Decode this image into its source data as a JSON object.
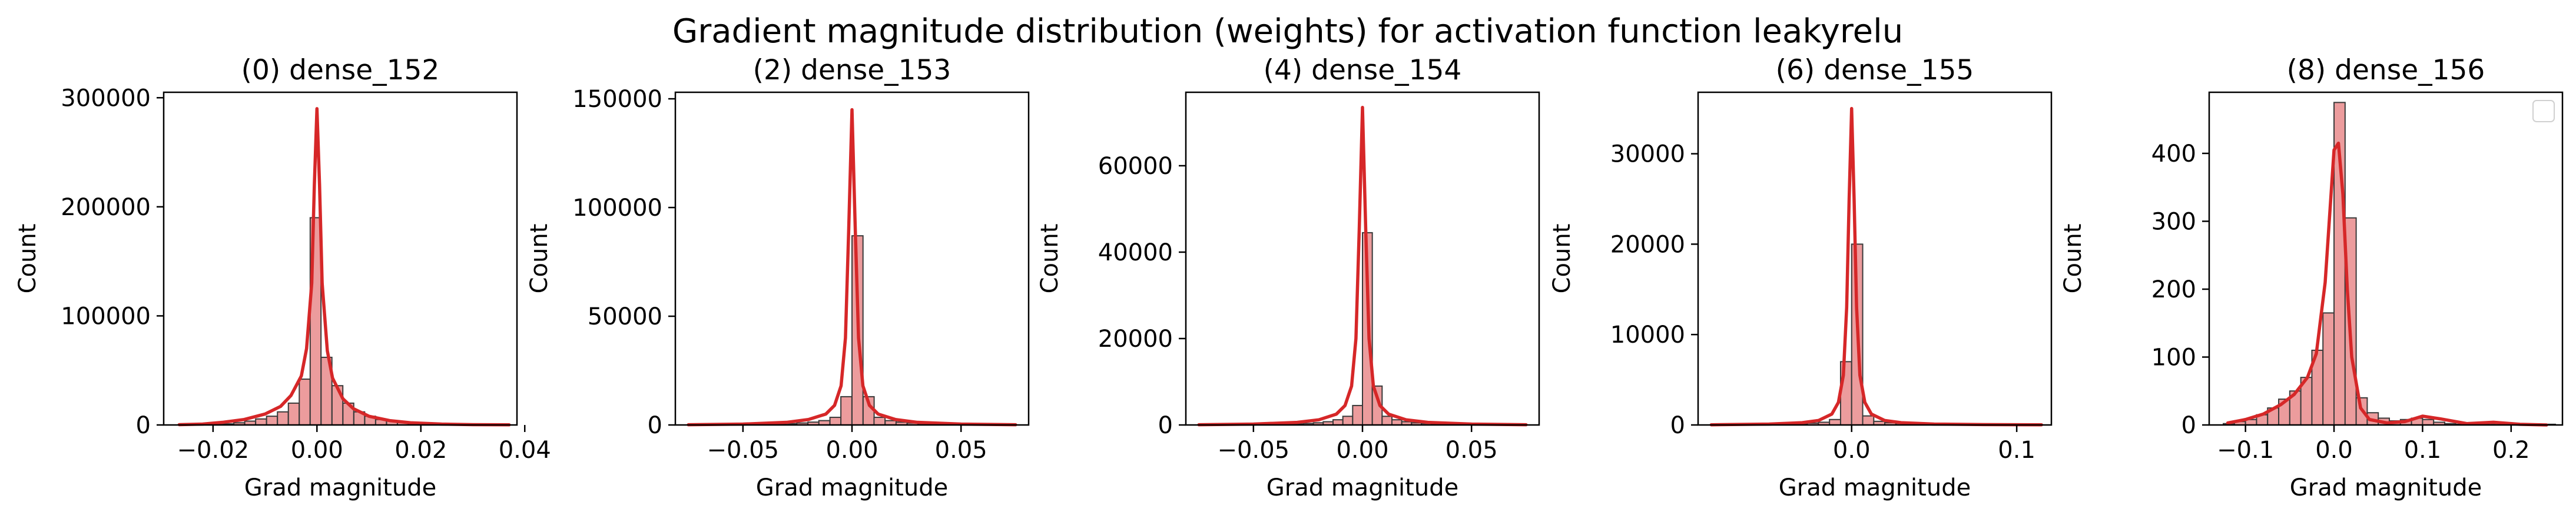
{
  "figure": {
    "title": "Gradient magnitude distribution (weights) for activation function leakyrelu",
    "colors": {
      "bar_fill": "#ec9c9d",
      "bar_edge": "#3a3a3a",
      "kde_line": "#d62728",
      "axes": "#000000"
    }
  },
  "chart_data": [
    {
      "type": "bar",
      "title": "(0) dense_152",
      "xlabel": "Grad magnitude",
      "ylabel": "Count",
      "xlim": [
        -0.0295,
        0.0385
      ],
      "ylim": [
        0,
        305000
      ],
      "xticks": [
        -0.02,
        0.0,
        0.02,
        0.04
      ],
      "xtick_labels": [
        "−0.02",
        "0.00",
        "0.02",
        "0.04"
      ],
      "yticks": [
        0,
        100000,
        200000,
        300000
      ],
      "ytick_labels": [
        "0",
        "100000",
        "200000",
        "300000"
      ],
      "bin_width": 0.00208,
      "bins": [
        [
          -0.0265,
          60
        ],
        [
          -0.0244,
          110
        ],
        [
          -0.0223,
          200
        ],
        [
          -0.0202,
          450
        ],
        [
          -0.0181,
          1000
        ],
        [
          -0.016,
          2000
        ],
        [
          -0.0139,
          3500
        ],
        [
          -0.0118,
          5500
        ],
        [
          -0.0097,
          8000
        ],
        [
          -0.0076,
          12000
        ],
        [
          -0.0055,
          20000
        ],
        [
          -0.0034,
          42000
        ],
        [
          -0.0013,
          190000
        ],
        [
          0.0008,
          62000
        ],
        [
          0.0029,
          36000
        ],
        [
          0.005,
          20000
        ],
        [
          0.0071,
          12000
        ],
        [
          0.0092,
          8000
        ],
        [
          0.0113,
          5000
        ],
        [
          0.0134,
          3500
        ],
        [
          0.0155,
          2200
        ],
        [
          0.0176,
          1400
        ],
        [
          0.0197,
          900
        ],
        [
          0.0218,
          600
        ],
        [
          0.0239,
          400
        ],
        [
          0.026,
          280
        ],
        [
          0.0281,
          200
        ],
        [
          0.0302,
          140
        ],
        [
          0.0323,
          100
        ],
        [
          0.0344,
          70
        ]
      ],
      "kde": {
        "x": [
          -0.0265,
          -0.022,
          -0.018,
          -0.014,
          -0.01,
          -0.007,
          -0.005,
          -0.003,
          -0.002,
          -0.001,
          -0.0005,
          0.0,
          0.0005,
          0.001,
          0.002,
          0.003,
          0.005,
          0.007,
          0.01,
          0.014,
          0.018,
          0.024,
          0.03,
          0.037
        ],
        "y": [
          300,
          800,
          2500,
          5000,
          10000,
          17000,
          27000,
          45000,
          70000,
          130000,
          220000,
          290000,
          220000,
          130000,
          68000,
          43000,
          24000,
          15000,
          8000,
          4000,
          2000,
          800,
          300,
          100
        ]
      }
    },
    {
      "type": "bar",
      "title": "(2) dense_153",
      "xlabel": "Grad magnitude",
      "ylabel": "Count",
      "xlim": [
        -0.081,
        0.081
      ],
      "ylim": [
        0,
        153000
      ],
      "xticks": [
        -0.05,
        0.0,
        0.05
      ],
      "xtick_labels": [
        "−0.05",
        "0.00",
        "0.05"
      ],
      "yticks": [
        0,
        50000,
        100000,
        150000
      ],
      "ytick_labels": [
        "0",
        "50000",
        "100000",
        "150000"
      ],
      "bin_width": 0.00505,
      "bins": [
        [
          -0.0505,
          100
        ],
        [
          -0.0455,
          150
        ],
        [
          -0.0404,
          250
        ],
        [
          -0.0354,
          400
        ],
        [
          -0.0303,
          600
        ],
        [
          -0.0253,
          900
        ],
        [
          -0.0202,
          1300
        ],
        [
          -0.0152,
          2000
        ],
        [
          -0.0101,
          3500
        ],
        [
          -0.0051,
          13000
        ],
        [
          0.0,
          87000
        ],
        [
          0.0051,
          13000
        ],
        [
          0.0101,
          3500
        ],
        [
          0.0152,
          2000
        ],
        [
          0.0202,
          1300
        ],
        [
          0.0253,
          900
        ],
        [
          0.0303,
          600
        ],
        [
          0.0354,
          400
        ],
        [
          0.0404,
          250
        ],
        [
          0.0455,
          150
        ]
      ],
      "kde": {
        "x": [
          -0.075,
          -0.05,
          -0.03,
          -0.02,
          -0.012,
          -0.008,
          -0.005,
          -0.003,
          -0.0015,
          0.0,
          0.0015,
          0.003,
          0.005,
          0.008,
          0.012,
          0.02,
          0.03,
          0.05,
          0.075
        ],
        "y": [
          100,
          400,
          1200,
          2500,
          5000,
          9000,
          18000,
          40000,
          90000,
          145000,
          90000,
          40000,
          18000,
          9000,
          5000,
          2500,
          1200,
          400,
          100
        ]
      }
    },
    {
      "type": "bar",
      "title": "(4) dense_154",
      "xlabel": "Grad magnitude",
      "ylabel": "Count",
      "xlim": [
        -0.081,
        0.081
      ],
      "ylim": [
        0,
        77000
      ],
      "xticks": [
        -0.05,
        0.0,
        0.05
      ],
      "xtick_labels": [
        "−0.05",
        "0.00",
        "0.05"
      ],
      "yticks": [
        0,
        20000,
        40000,
        60000
      ],
      "ytick_labels": [
        "0",
        "20000",
        "40000",
        "60000"
      ],
      "bin_width": 0.0045,
      "bins": [
        [
          -0.045,
          60
        ],
        [
          -0.0405,
          100
        ],
        [
          -0.036,
          150
        ],
        [
          -0.0315,
          250
        ],
        [
          -0.027,
          350
        ],
        [
          -0.0225,
          500
        ],
        [
          -0.018,
          750
        ],
        [
          -0.0135,
          1200
        ],
        [
          -0.009,
          2000
        ],
        [
          -0.0045,
          4500
        ],
        [
          0.0,
          44500
        ],
        [
          0.0045,
          9000
        ],
        [
          0.009,
          2000
        ],
        [
          0.0135,
          1200
        ],
        [
          0.018,
          750
        ],
        [
          0.0225,
          500
        ],
        [
          0.027,
          350
        ],
        [
          0.0315,
          250
        ],
        [
          0.036,
          150
        ],
        [
          0.0405,
          100
        ]
      ],
      "kde": {
        "x": [
          -0.075,
          -0.05,
          -0.03,
          -0.02,
          -0.012,
          -0.008,
          -0.005,
          -0.003,
          -0.0015,
          0.0,
          0.0015,
          0.003,
          0.005,
          0.008,
          0.012,
          0.02,
          0.03,
          0.05,
          0.075
        ],
        "y": [
          50,
          200,
          600,
          1200,
          2500,
          4500,
          9000,
          20000,
          45000,
          73500,
          45000,
          20000,
          9000,
          4500,
          2500,
          1200,
          600,
          200,
          50
        ]
      }
    },
    {
      "type": "bar",
      "title": "(6) dense_155",
      "xlabel": "Grad magnitude",
      "ylabel": "Count",
      "xlim": [
        -0.093,
        0.121
      ],
      "ylim": [
        0,
        36800
      ],
      "xticks": [
        0.0,
        0.1
      ],
      "xtick_labels": [
        "0.0",
        "0.1"
      ],
      "yticks": [
        0,
        10000,
        20000,
        30000
      ],
      "ytick_labels": [
        "0",
        "10000",
        "20000",
        "30000"
      ],
      "bin_width": 0.0067,
      "bins": [
        [
          -0.0603,
          30
        ],
        [
          -0.0536,
          50
        ],
        [
          -0.0469,
          70
        ],
        [
          -0.0402,
          100
        ],
        [
          -0.0335,
          140
        ],
        [
          -0.0268,
          200
        ],
        [
          -0.0201,
          300
        ],
        [
          -0.0134,
          600
        ],
        [
          -0.0067,
          7000
        ],
        [
          0.0,
          20000
        ],
        [
          0.0067,
          1000
        ],
        [
          0.0134,
          400
        ],
        [
          0.0201,
          250
        ],
        [
          0.0268,
          170
        ],
        [
          0.0335,
          120
        ],
        [
          0.0402,
          90
        ],
        [
          0.0469,
          70
        ],
        [
          0.0536,
          50
        ],
        [
          0.0603,
          40
        ],
        [
          0.067,
          30
        ]
      ],
      "kde": {
        "x": [
          -0.085,
          -0.05,
          -0.03,
          -0.02,
          -0.012,
          -0.008,
          -0.005,
          -0.003,
          -0.0015,
          0.0,
          0.0015,
          0.003,
          0.005,
          0.008,
          0.012,
          0.02,
          0.03,
          0.05,
          0.08,
          0.115
        ],
        "y": [
          20,
          100,
          250,
          500,
          1200,
          2500,
          5500,
          13000,
          25000,
          35000,
          25000,
          13000,
          5500,
          2500,
          1200,
          500,
          250,
          100,
          40,
          20
        ]
      }
    },
    {
      "type": "bar",
      "title": "(8) dense_156",
      "xlabel": "Grad magnitude",
      "ylabel": "Count",
      "xlim": [
        -0.141,
        0.258
      ],
      "ylim": [
        0,
        490
      ],
      "xticks": [
        -0.1,
        0.0,
        0.1,
        0.2
      ],
      "xtick_labels": [
        "−0.1",
        "0.0",
        "0.1",
        "0.2"
      ],
      "yticks": [
        0,
        100,
        200,
        300,
        400
      ],
      "ytick_labels": [
        "0",
        "100",
        "200",
        "300",
        "400"
      ],
      "legend": {
        "position": "top-right",
        "entries": []
      },
      "bin_width": 0.0125,
      "bins": [
        [
          -0.125,
          2
        ],
        [
          -0.1125,
          5
        ],
        [
          -0.1,
          8
        ],
        [
          -0.0875,
          15
        ],
        [
          -0.075,
          25
        ],
        [
          -0.0625,
          38
        ],
        [
          -0.05,
          50
        ],
        [
          -0.0375,
          70
        ],
        [
          -0.025,
          110
        ],
        [
          -0.0125,
          165
        ],
        [
          0.0,
          475
        ],
        [
          0.0125,
          305
        ],
        [
          0.025,
          40
        ],
        [
          0.0375,
          18
        ],
        [
          0.05,
          10
        ],
        [
          0.0625,
          6
        ],
        [
          0.075,
          8
        ],
        [
          0.0875,
          10
        ],
        [
          0.1,
          8
        ],
        [
          0.1125,
          4
        ],
        [
          0.125,
          2
        ],
        [
          0.1375,
          1
        ],
        [
          0.15,
          1
        ],
        [
          0.1625,
          1
        ],
        [
          0.175,
          2
        ],
        [
          0.1875,
          3
        ],
        [
          0.2,
          2
        ],
        [
          0.2125,
          1
        ],
        [
          0.225,
          1
        ],
        [
          0.2375,
          1
        ]
      ],
      "kde": {
        "x": [
          -0.12,
          -0.1,
          -0.08,
          -0.06,
          -0.045,
          -0.03,
          -0.02,
          -0.01,
          0.0,
          0.005,
          0.01,
          0.015,
          0.02,
          0.03,
          0.04,
          0.06,
          0.08,
          0.1,
          0.12,
          0.15,
          0.18,
          0.21,
          0.24
        ],
        "y": [
          3,
          8,
          16,
          30,
          45,
          70,
          105,
          210,
          405,
          415,
          340,
          200,
          100,
          25,
          8,
          3,
          5,
          13,
          9,
          2,
          4,
          1,
          0
        ]
      }
    }
  ]
}
